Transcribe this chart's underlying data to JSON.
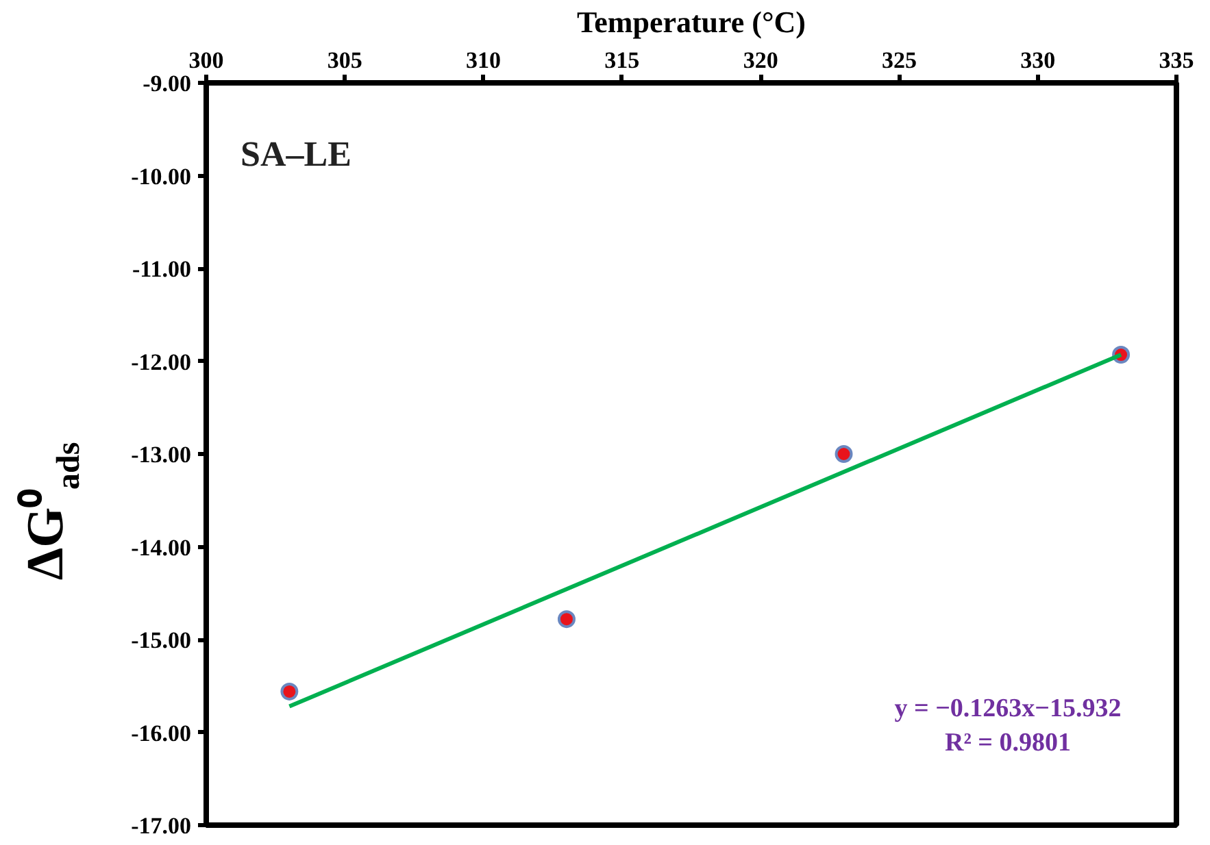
{
  "chart_data": {
    "type": "scatter",
    "xlabel": "Temperature (°C)",
    "ylabel": "ΔG⁰$_{ads}$",
    "xlim": [
      300,
      335
    ],
    "xticks": [
      300,
      305,
      310,
      315,
      320,
      325,
      330,
      335
    ],
    "ylim": [
      -17,
      -9
    ],
    "yticks": [
      {
        "value": -9,
        "label": "-9.00"
      },
      {
        "value": -10,
        "label": "-10.00"
      },
      {
        "value": -11,
        "label": "-11.00"
      },
      {
        "value": -12,
        "label": "-12.00"
      },
      {
        "value": -13,
        "label": "-13.00"
      },
      {
        "value": -14,
        "label": "-14.00"
      },
      {
        "value": -15,
        "label": "-15.00"
      },
      {
        "value": -16,
        "label": "-16.00"
      },
      {
        "value": -17,
        "label": "-17.00"
      }
    ],
    "grid": false,
    "marker": "circle",
    "series": [
      {
        "color": "#e8141c",
        "x": [
          303,
          313,
          323,
          333
        ],
        "values": [
          -15.56,
          -14.78,
          -13.0,
          -11.93
        ]
      },
      {
        "type": "line",
        "marker": "none",
        "color": "#00b050",
        "x": [
          303,
          333
        ],
        "values": [
          -15.72,
          -11.93
        ]
      }
    ],
    "annotations": [
      "SA–LE",
      "y = −0.1263x−15.932",
      "R² = 0.9801"
    ]
  }
}
